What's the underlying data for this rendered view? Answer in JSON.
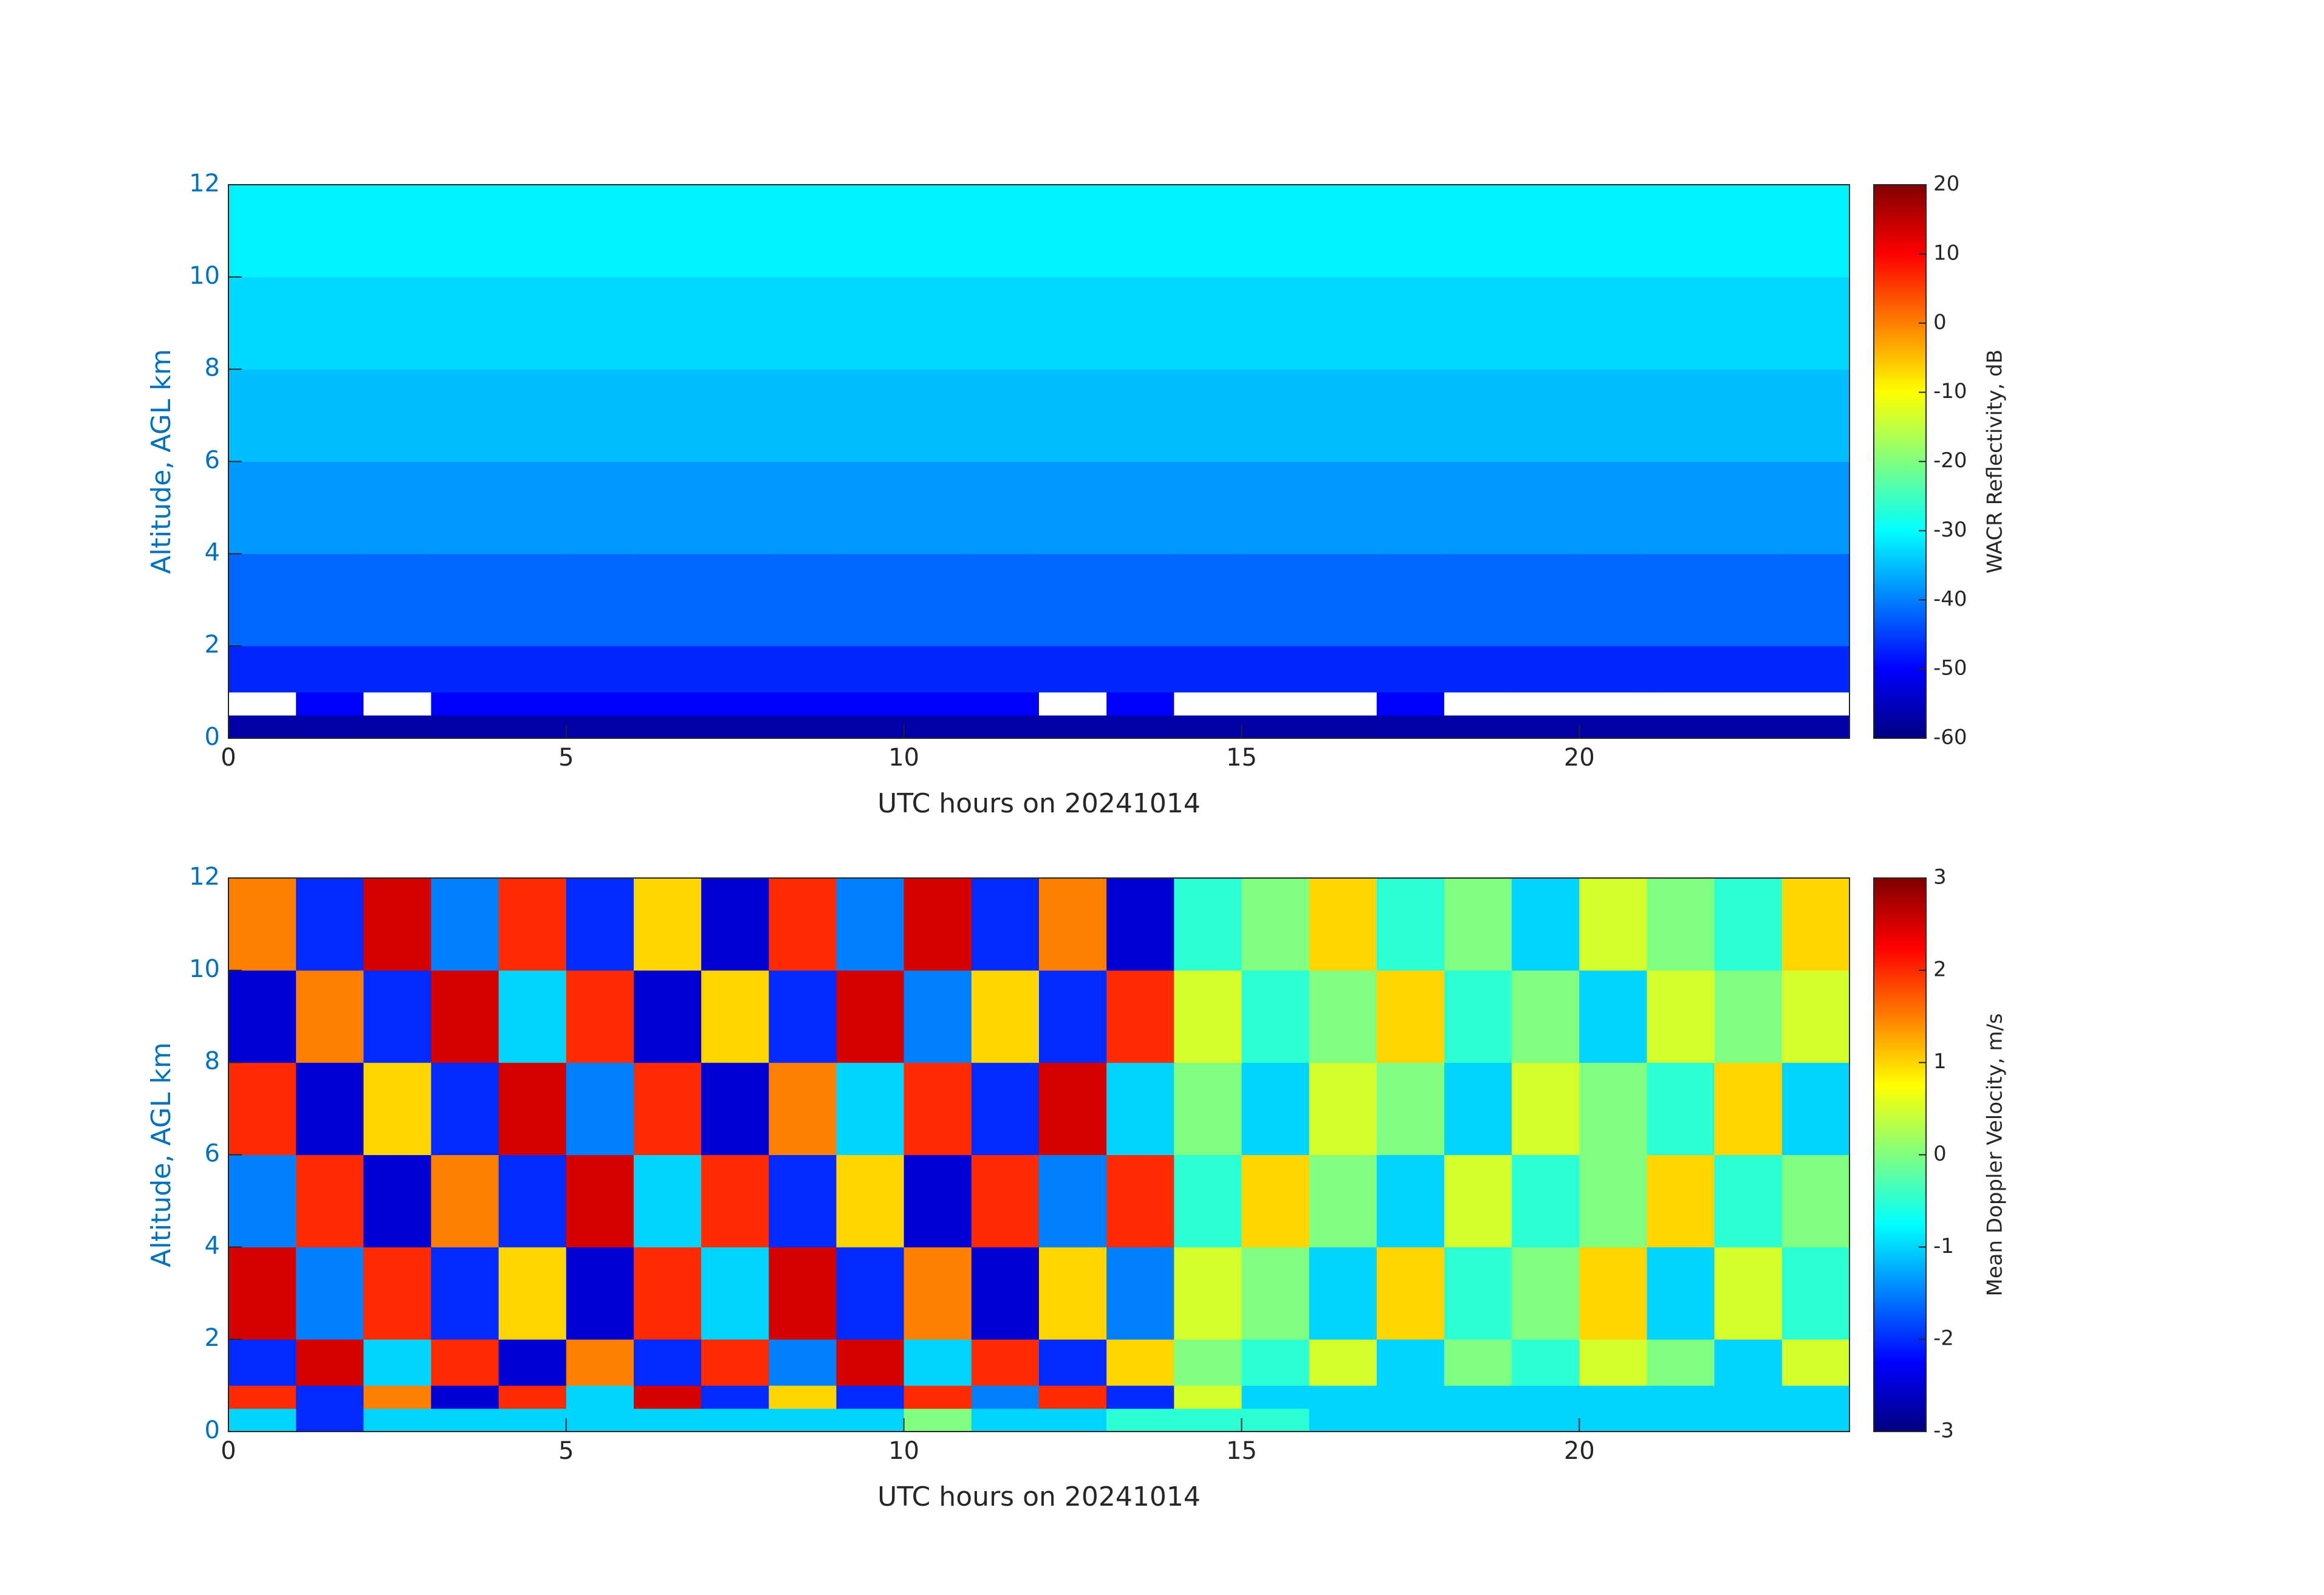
{
  "chart_data": [
    {
      "type": "heatmap",
      "x_edges": [
        0,
        1,
        2,
        3,
        4,
        5,
        6,
        7,
        8,
        9,
        10,
        11,
        12,
        13,
        14,
        15,
        16,
        17,
        18,
        19,
        20,
        21,
        22,
        23,
        24
      ],
      "y_edges": [
        0,
        0.5,
        1,
        2,
        4,
        6,
        8,
        10,
        12
      ],
      "values": [
        [
          -57,
          -57,
          -57,
          -57,
          -57,
          -57,
          -57,
          -57,
          -57,
          -57,
          -57,
          -57,
          -57,
          -57,
          -57,
          -57,
          -57,
          -57,
          -57,
          -57,
          -57,
          -57,
          -57,
          -57
        ],
        [
          25,
          -50,
          25,
          -50,
          -50,
          -50,
          -50,
          -50,
          -50,
          -50,
          -50,
          -50,
          25,
          -50,
          25,
          25,
          25,
          -50,
          25,
          25,
          25,
          25,
          25,
          25
        ],
        [
          -47,
          -47,
          -47,
          -47,
          -47,
          -47,
          -47,
          -47,
          -47,
          -47,
          -47,
          -47,
          -47,
          -47,
          -47,
          -47,
          -47,
          -47,
          -47,
          -47,
          -47,
          -47,
          -47,
          -47
        ],
        [
          -42,
          -42,
          -42,
          -42,
          -42,
          -42,
          -42,
          -42,
          -42,
          -42,
          -42,
          -42,
          -42,
          -42,
          -42,
          -42,
          -42,
          -42,
          -42,
          -42,
          -42,
          -42,
          -42,
          -42
        ],
        [
          -38,
          -38,
          -38,
          -38,
          -38,
          -38,
          -38,
          -38,
          -38,
          -38,
          -38,
          -38,
          -38,
          -38,
          -38,
          -38,
          -38,
          -38,
          -38,
          -38,
          -38,
          -38,
          -38,
          -38
        ],
        [
          -35,
          -35,
          -35,
          -35,
          -35,
          -35,
          -35,
          -35,
          -35,
          -35,
          -35,
          -35,
          -35,
          -35,
          -35,
          -35,
          -35,
          -35,
          -35,
          -35,
          -35,
          -35,
          -35,
          -35
        ],
        [
          -33,
          -33,
          -33,
          -33,
          -33,
          -33,
          -33,
          -33,
          -33,
          -33,
          -33,
          -33,
          -33,
          -33,
          -33,
          -33,
          -33,
          -33,
          -33,
          -33,
          -33,
          -33,
          -33,
          -33
        ],
        [
          -31,
          -31,
          -31,
          -31,
          -31,
          -31,
          -31,
          -31,
          -31,
          -31,
          -31,
          -31,
          -31,
          -31,
          -31,
          -31,
          -31,
          -31,
          -31,
          -31,
          -31,
          -31,
          -31,
          -31
        ]
      ],
      "clim": [
        -60,
        20
      ],
      "cticks": [
        -60,
        -50,
        -40,
        -30,
        -20,
        -10,
        0,
        10,
        20
      ],
      "over_color": "#ffffff",
      "colorbar_label": "WACR Reflectivity, dB",
      "xlim": [
        0,
        24
      ],
      "xticks": [
        0,
        5,
        10,
        15,
        20
      ],
      "ylim": [
        0,
        12
      ],
      "yticks": [
        0,
        2,
        4,
        6,
        8,
        10,
        12
      ],
      "xlabel": "UTC hours on 20241014",
      "ylabel": "Altitude, AGL km",
      "colormap": "jet"
    },
    {
      "type": "heatmap",
      "x_edges": [
        0,
        1,
        2,
        3,
        4,
        5,
        6,
        7,
        8,
        9,
        10,
        11,
        12,
        13,
        14,
        15,
        16,
        17,
        18,
        19,
        20,
        21,
        22,
        23,
        24
      ],
      "y_edges": [
        0,
        0.5,
        1,
        2,
        4,
        6,
        8,
        10,
        12
      ],
      "values": [
        [
          -1,
          -2,
          -1,
          -1,
          -1,
          -1,
          -1,
          -1,
          -1,
          -1,
          0,
          -1,
          -1,
          -0.5,
          -0.5,
          -0.5,
          -1,
          -1,
          -1,
          -1,
          -1,
          -1,
          -1,
          -1
        ],
        [
          2,
          -2,
          1.5,
          -2.5,
          2,
          -1,
          2.5,
          -2,
          1,
          -2,
          2,
          -1.5,
          2,
          -2,
          0.5,
          -1,
          -1,
          -1,
          -1,
          -1,
          -1,
          -1,
          -1,
          -1
        ],
        [
          -2,
          2.5,
          -1,
          2,
          -2.5,
          1.5,
          -2,
          2,
          -1.5,
          2.5,
          -1,
          2,
          -2,
          1,
          0,
          -0.5,
          0.5,
          -1,
          0,
          -0.5,
          0.5,
          0,
          -1,
          0.5
        ],
        [
          2.5,
          -1.5,
          2,
          -2,
          1,
          -2.5,
          2,
          -1,
          2.5,
          -2,
          1.5,
          -2.5,
          1,
          -1.5,
          0.5,
          0,
          -1,
          1,
          -0.5,
          0,
          1,
          -1,
          0.5,
          -0.5
        ],
        [
          -1.5,
          2,
          -2.5,
          1.5,
          -2,
          2.5,
          -1,
          2,
          -2,
          1,
          -2.5,
          2,
          -1.5,
          2,
          -0.5,
          1,
          0,
          -1,
          0.5,
          -0.5,
          0,
          1,
          -0.5,
          0
        ],
        [
          2,
          -2.5,
          1,
          -2,
          2.5,
          -1.5,
          2,
          -2.5,
          1.5,
          -1,
          2,
          -2,
          2.5,
          -1,
          0,
          -1,
          0.5,
          0,
          -1,
          0.5,
          0,
          -0.5,
          1,
          -1
        ],
        [
          -2.5,
          1.5,
          -2,
          2.5,
          -1,
          2,
          -2.5,
          1,
          -2,
          2.5,
          -1.5,
          1,
          -2,
          2,
          0.5,
          -0.5,
          0,
          1,
          -0.5,
          0,
          -1,
          0.5,
          0,
          0.5
        ],
        [
          1.5,
          -2,
          2.5,
          -1.5,
          2,
          -2,
          1,
          -2.5,
          2,
          -1.5,
          2.5,
          -2,
          1.5,
          -2.5,
          -0.5,
          0,
          1,
          -0.5,
          0,
          -1,
          0.5,
          0,
          -0.5,
          1
        ]
      ],
      "clim": [
        -3,
        3
      ],
      "cticks": [
        -3,
        -2,
        -1,
        0,
        1,
        2,
        3
      ],
      "colorbar_label": "Mean Doppler Velocity, m/s",
      "xlim": [
        0,
        24
      ],
      "xticks": [
        0,
        5,
        10,
        15,
        20
      ],
      "ylim": [
        0,
        12
      ],
      "yticks": [
        0,
        2,
        4,
        6,
        8,
        10,
        12
      ],
      "xlabel": "UTC hours on 20241014",
      "ylabel": "Altitude, AGL km",
      "colormap": "jet"
    }
  ]
}
